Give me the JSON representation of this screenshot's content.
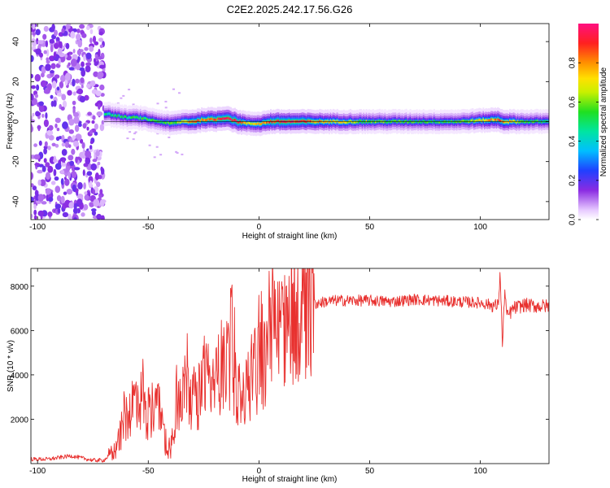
{
  "title": "C2E2.2025.242.17.56.G26",
  "chart_data": [
    {
      "type": "heatmap",
      "xlabel": "Height of straight line (km)",
      "ylabel": "Frequency (Hz)",
      "xlim": [
        -103,
        131
      ],
      "ylim": [
        -49,
        49
      ],
      "x_ticks": [
        -100,
        -50,
        0,
        50,
        100
      ],
      "y_ticks": [
        -40,
        -20,
        0,
        20,
        40
      ],
      "colorbar": {
        "label": "Normalized spectral amplitude",
        "range": [
          0,
          1
        ],
        "ticks": [
          0.0,
          0.2,
          0.4,
          0.6,
          0.8
        ]
      },
      "signal": {
        "description_points_x_km": [
          -70,
          -65,
          -60,
          -55,
          -50,
          -45,
          -40,
          -35,
          -30,
          -25,
          -20,
          -15,
          -10,
          -5,
          0,
          5,
          10,
          20,
          30,
          50,
          70,
          90,
          108,
          110,
          120,
          131
        ],
        "center_freq_hz": [
          4,
          3,
          2,
          2,
          1,
          0,
          -1,
          0,
          0,
          1,
          1,
          2,
          0,
          -1,
          -1,
          0,
          0,
          0,
          0,
          0,
          0,
          0,
          1,
          0,
          0,
          0
        ],
        "peak_amplitude": [
          0.45,
          0.45,
          0.45,
          0.5,
          0.5,
          0.45,
          0.55,
          0.6,
          0.8,
          0.8,
          0.85,
          0.9,
          0.9,
          0.6,
          0.7,
          0.85,
          0.9,
          0.85,
          0.7,
          0.55,
          0.5,
          0.5,
          0.8,
          0.75,
          0.5,
          0.5
        ],
        "noise_region_x_km": [
          -103,
          -70
        ]
      }
    },
    {
      "type": "line",
      "xlabel": "Height of straight line (km)",
      "ylabel": "SNR (10 * v/v)",
      "xlim": [
        -103,
        131
      ],
      "ylim": [
        0,
        8800
      ],
      "x_ticks": [
        -100,
        -50,
        0,
        50,
        100
      ],
      "y_ticks": [
        2000,
        4000,
        6000,
        8000
      ],
      "color": "#e8302e",
      "series": [
        {
          "x": [
            -103,
            -95,
            -85,
            -80,
            -75,
            -70,
            -65,
            -62,
            -58,
            -55,
            -52,
            -50,
            -48,
            -45,
            -42,
            -40,
            -38,
            -35,
            -32,
            -30,
            -28,
            -25,
            -22,
            -20,
            -18,
            -15,
            -12,
            -10,
            -8,
            -5,
            -2,
            0,
            3,
            6,
            10,
            15,
            20,
            25,
            30,
            35,
            40,
            50,
            60,
            70,
            80,
            90,
            100,
            105,
            108,
            109,
            110,
            111,
            112,
            115,
            120,
            125,
            131
          ],
          "values": [
            200,
            200,
            350,
            250,
            150,
            150,
            600,
            1500,
            2500,
            3200,
            2600,
            1800,
            2600,
            2400,
            900,
            500,
            2200,
            3200,
            3800,
            2800,
            2700,
            4000,
            3300,
            3300,
            4200,
            4800,
            4500,
            3400,
            2800,
            3200,
            4000,
            4600,
            4700,
            5400,
            5900,
            6400,
            6900,
            7200,
            7300,
            7350,
            7350,
            7350,
            7300,
            7400,
            7350,
            7300,
            7250,
            7150,
            7100,
            8600,
            5200,
            7900,
            6600,
            7000,
            7150,
            7100,
            7100
          ]
        }
      ]
    }
  ]
}
